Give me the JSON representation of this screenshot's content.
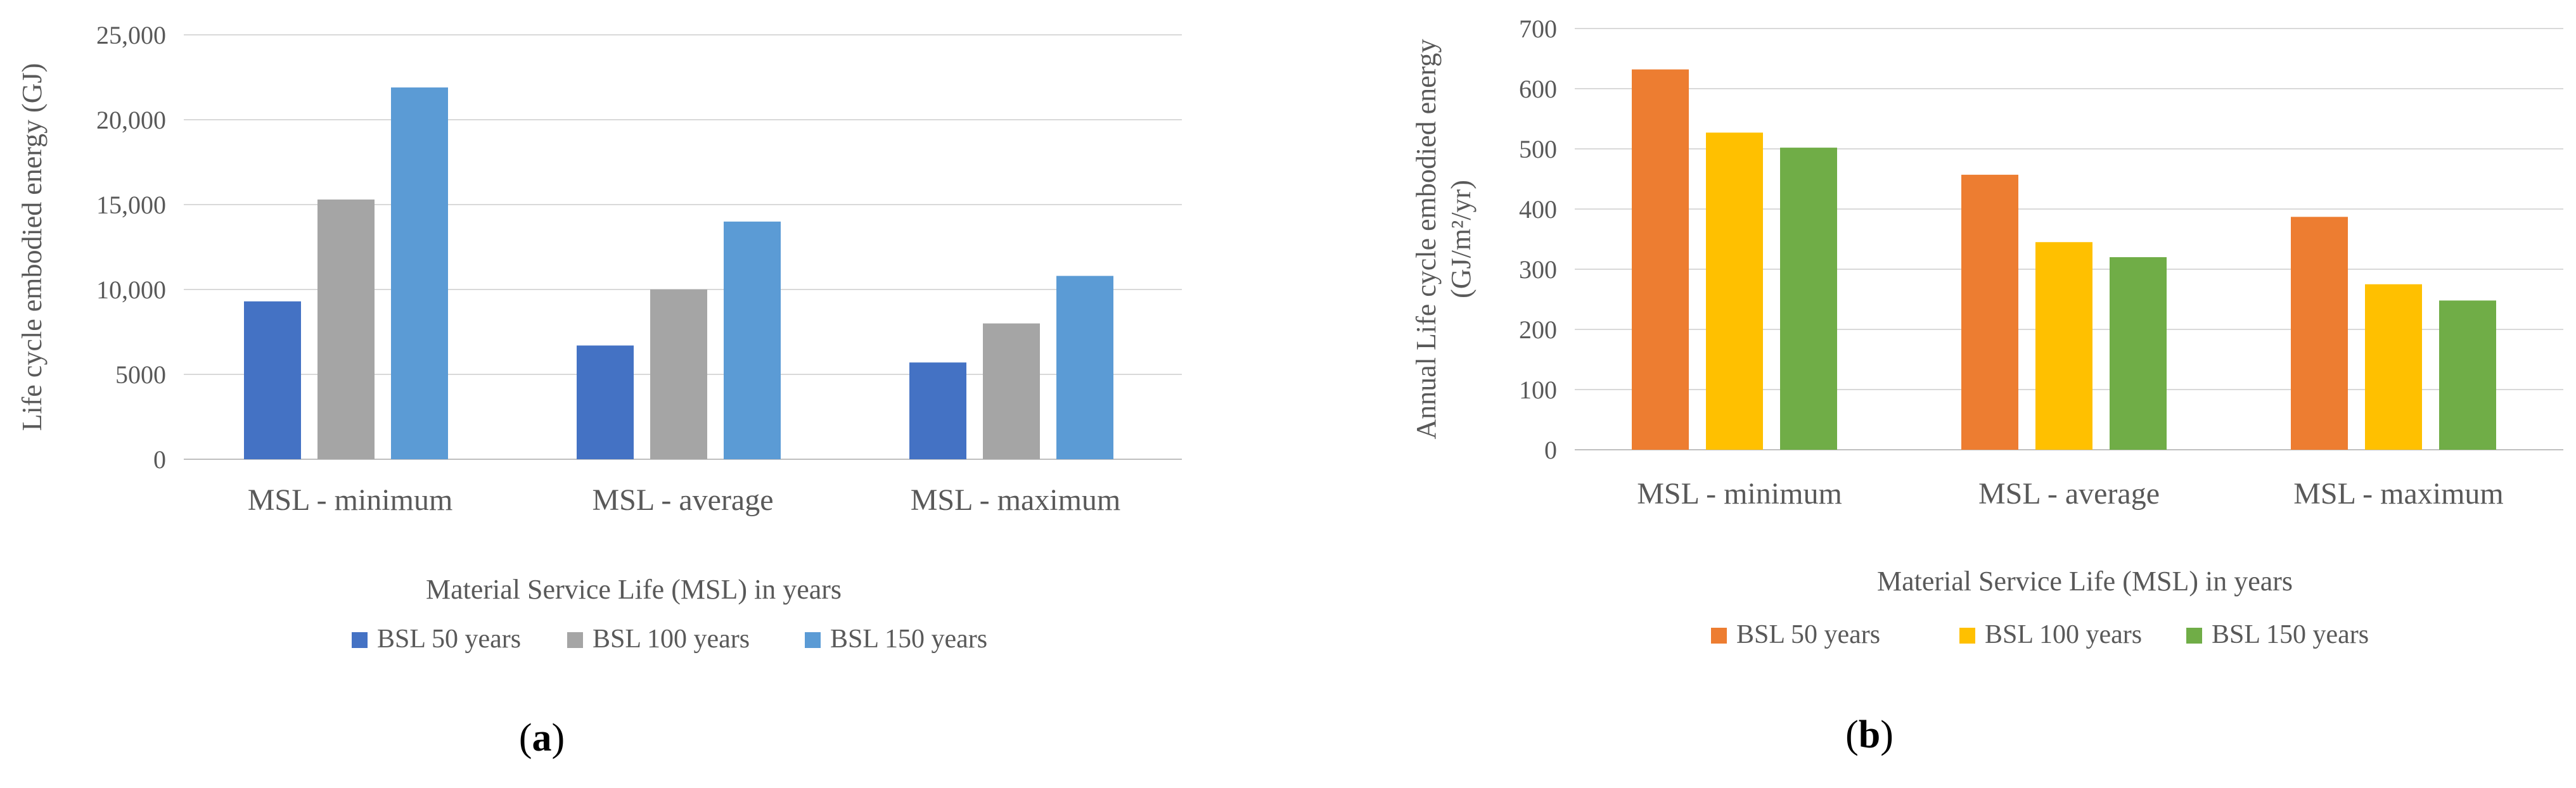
{
  "chart_data": [
    {
      "type": "bar",
      "panel_label": "a",
      "title": "",
      "categories": [
        "MSL - minimum",
        "MSL - average",
        "MSL - maximum"
      ],
      "series": [
        {
          "name": "BSL 50 years",
          "values": [
            9300,
            6700,
            5700
          ],
          "color": "#4472c4"
        },
        {
          "name": "BSL 100 years",
          "values": [
            15300,
            10000,
            8000
          ],
          "color": "#a5a5a5"
        },
        {
          "name": "BSL 150 years",
          "values": [
            21900,
            14000,
            10800
          ],
          "color": "#5b9bd5"
        }
      ],
      "xlabel": "Material Service Life (MSL) in years",
      "ylabel": "Life cycle embodied energy (GJ)",
      "ylim": [
        0,
        25000
      ],
      "yticks": [
        0,
        5000,
        10000,
        15000,
        20000,
        25000
      ],
      "ytick_labels": [
        "0",
        "5000",
        "10,000",
        "15,000",
        "20,000",
        "25,000"
      ],
      "grid": true,
      "legend_position": "bottom"
    },
    {
      "type": "bar",
      "panel_label": "b",
      "title": "",
      "categories": [
        "MSL - minimum",
        "MSL - average",
        "MSL - maximum"
      ],
      "series": [
        {
          "name": "BSL 50 years",
          "values": [
            632,
            457,
            387
          ],
          "color": "#ed7d31"
        },
        {
          "name": "BSL 100 years",
          "values": [
            527,
            345,
            275
          ],
          "color": "#ffc000"
        },
        {
          "name": "BSL 150 years",
          "values": [
            502,
            320,
            248
          ],
          "color": "#70ad47"
        }
      ],
      "xlabel": "Material Service Life (MSL) in years",
      "ylabel": "Annual Life cycle embodied energy",
      "ylabel_line2": "(GJ/m²/yr)",
      "ylim": [
        0,
        700
      ],
      "yticks": [
        0,
        100,
        200,
        300,
        400,
        500,
        600,
        700
      ],
      "ytick_labels": [
        "0",
        "100",
        "200",
        "300",
        "400",
        "500",
        "600",
        "700"
      ],
      "grid": true,
      "legend_position": "bottom"
    }
  ]
}
